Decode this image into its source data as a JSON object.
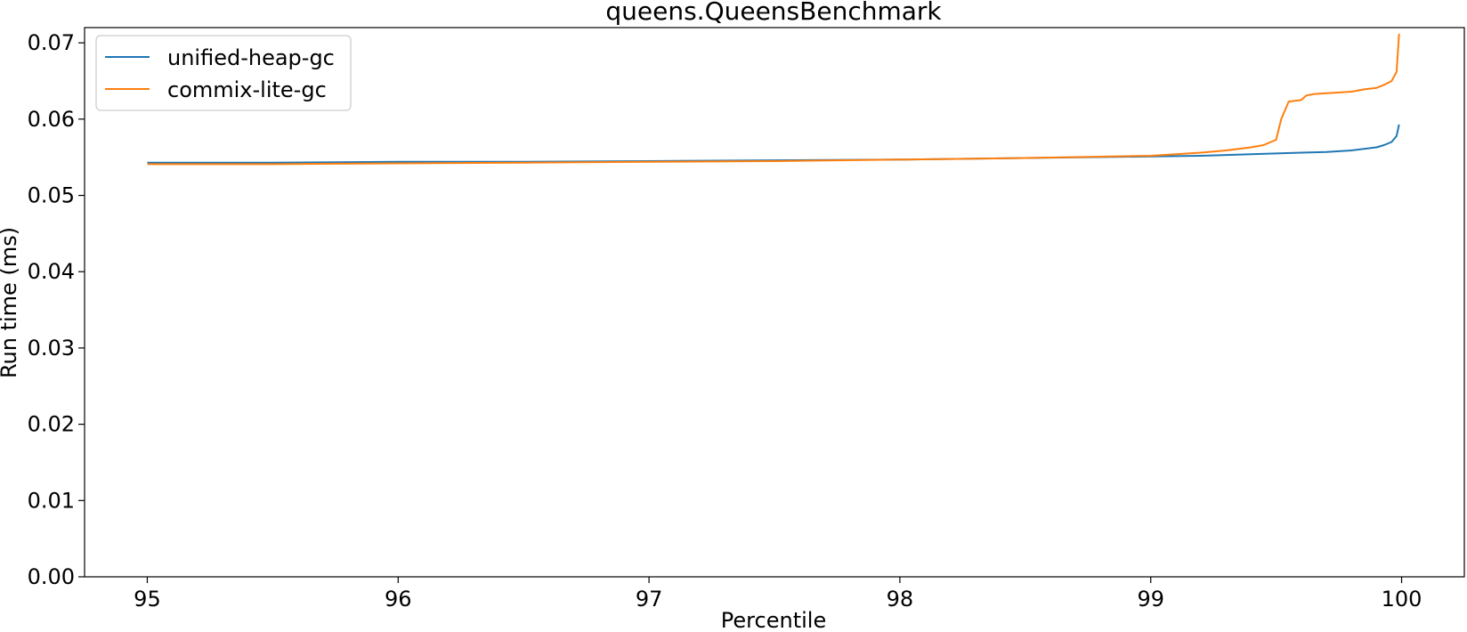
{
  "chart_data": {
    "type": "line",
    "title": "queens.QueensBenchmark",
    "xlabel": "Percentile",
    "ylabel": "Run time (ms)",
    "xlim": [
      94.75,
      100.25
    ],
    "ylim": [
      0.0,
      0.072
    ],
    "xticks": [
      95,
      96,
      97,
      98,
      99,
      100
    ],
    "xtick_labels": [
      "95",
      "96",
      "97",
      "98",
      "99",
      "100"
    ],
    "yticks": [
      0.0,
      0.01,
      0.02,
      0.03,
      0.04,
      0.05,
      0.06,
      0.07
    ],
    "ytick_labels": [
      "0.00",
      "0.01",
      "0.02",
      "0.03",
      "0.04",
      "0.05",
      "0.06",
      "0.07"
    ],
    "grid": false,
    "legend_position": "top-left",
    "series": [
      {
        "name": "unified-heap-gc",
        "color": "#1f77b4",
        "x": [
          95.0,
          95.5,
          96.0,
          96.5,
          97.0,
          97.5,
          98.0,
          98.5,
          99.0,
          99.2,
          99.4,
          99.5,
          99.6,
          99.7,
          99.8,
          99.85,
          99.9,
          99.93,
          99.96,
          99.98,
          99.99
        ],
        "y": [
          0.0543,
          0.0543,
          0.0544,
          0.0544,
          0.0545,
          0.0546,
          0.0547,
          0.0549,
          0.0551,
          0.0552,
          0.0554,
          0.0555,
          0.0556,
          0.0557,
          0.0559,
          0.0561,
          0.0563,
          0.0566,
          0.057,
          0.0578,
          0.0593
        ]
      },
      {
        "name": "commix-lite-gc",
        "color": "#ff7f0e",
        "x": [
          95.0,
          95.5,
          96.0,
          96.5,
          97.0,
          97.5,
          98.0,
          98.5,
          99.0,
          99.1,
          99.2,
          99.3,
          99.4,
          99.45,
          99.5,
          99.52,
          99.55,
          99.6,
          99.62,
          99.65,
          99.7,
          99.8,
          99.85,
          99.9,
          99.93,
          99.96,
          99.98,
          99.99
        ],
        "y": [
          0.0541,
          0.0541,
          0.0542,
          0.0543,
          0.0544,
          0.0545,
          0.0547,
          0.0549,
          0.0552,
          0.0554,
          0.0556,
          0.0559,
          0.0563,
          0.0566,
          0.0573,
          0.06,
          0.0623,
          0.0625,
          0.0631,
          0.0633,
          0.0634,
          0.0636,
          0.0639,
          0.0641,
          0.0645,
          0.065,
          0.0662,
          0.0712
        ]
      }
    ]
  }
}
